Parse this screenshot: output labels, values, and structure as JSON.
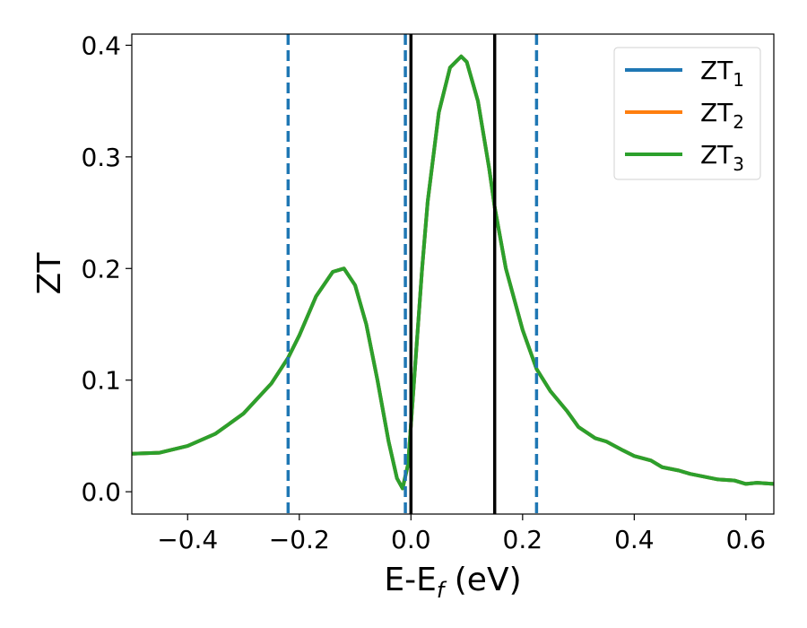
{
  "chart_data": {
    "type": "line",
    "xlabel_main": "E-E",
    "xlabel_sub": "f",
    "xlabel_unit": " (eV)",
    "ylabel": "ZT",
    "xlim": [
      -0.5,
      0.65
    ],
    "ylim": [
      -0.02,
      0.41
    ],
    "xticks": [
      -0.4,
      -0.2,
      0.0,
      0.2,
      0.4,
      0.6
    ],
    "xtick_labels": [
      "−0.4",
      "−0.2",
      "0.0",
      "0.2",
      "0.4",
      "0.6"
    ],
    "yticks": [
      0.0,
      0.1,
      0.2,
      0.3,
      0.4
    ],
    "ytick_labels": [
      "0.0",
      "0.1",
      "0.2",
      "0.3",
      "0.4"
    ],
    "grid": false,
    "legend_position": "top-right",
    "series": [
      {
        "name": "ZT1",
        "name_main": "ZT",
        "name_sub": "1",
        "color": "#1f77b4",
        "x": [
          -0.5,
          -0.45,
          -0.4,
          -0.35,
          -0.3,
          -0.25,
          -0.22,
          -0.2,
          -0.17,
          -0.14,
          -0.12,
          -0.1,
          -0.08,
          -0.06,
          -0.04,
          -0.025,
          -0.015,
          -0.005,
          0.0,
          0.01,
          0.02,
          0.03,
          0.05,
          0.07,
          0.09,
          0.1,
          0.12,
          0.14,
          0.15,
          0.17,
          0.2,
          0.225,
          0.25,
          0.28,
          0.3,
          0.33,
          0.35,
          0.38,
          0.4,
          0.43,
          0.45,
          0.48,
          0.5,
          0.53,
          0.55,
          0.58,
          0.6,
          0.62,
          0.65
        ],
        "y": [
          0.034,
          0.035,
          0.041,
          0.052,
          0.07,
          0.097,
          0.12,
          0.14,
          0.175,
          0.197,
          0.2,
          0.185,
          0.15,
          0.1,
          0.045,
          0.012,
          0.003,
          0.025,
          0.06,
          0.13,
          0.2,
          0.26,
          0.34,
          0.38,
          0.39,
          0.385,
          0.35,
          0.29,
          0.255,
          0.2,
          0.145,
          0.11,
          0.09,
          0.072,
          0.058,
          0.048,
          0.045,
          0.037,
          0.032,
          0.028,
          0.022,
          0.019,
          0.016,
          0.013,
          0.011,
          0.01,
          0.007,
          0.008,
          0.007
        ]
      },
      {
        "name": "ZT2",
        "name_main": "ZT",
        "name_sub": "2",
        "color": "#ff7f0e",
        "x": [
          -0.5,
          -0.45,
          -0.4,
          -0.35,
          -0.3,
          -0.25,
          -0.22,
          -0.2,
          -0.17,
          -0.14,
          -0.12,
          -0.1,
          -0.08,
          -0.06,
          -0.04,
          -0.025,
          -0.015,
          -0.005,
          0.0,
          0.01,
          0.02,
          0.03,
          0.05,
          0.07,
          0.09,
          0.1,
          0.12,
          0.14,
          0.15,
          0.17,
          0.2,
          0.225,
          0.25,
          0.28,
          0.3,
          0.33,
          0.35,
          0.38,
          0.4,
          0.43,
          0.45,
          0.48,
          0.5,
          0.53,
          0.55,
          0.58,
          0.6,
          0.62,
          0.65
        ],
        "y": [
          0.034,
          0.035,
          0.041,
          0.052,
          0.07,
          0.097,
          0.12,
          0.14,
          0.175,
          0.197,
          0.2,
          0.185,
          0.15,
          0.1,
          0.045,
          0.012,
          0.003,
          0.025,
          0.06,
          0.13,
          0.2,
          0.26,
          0.34,
          0.38,
          0.39,
          0.385,
          0.35,
          0.29,
          0.255,
          0.2,
          0.145,
          0.11,
          0.09,
          0.072,
          0.058,
          0.048,
          0.045,
          0.037,
          0.032,
          0.028,
          0.022,
          0.019,
          0.016,
          0.013,
          0.011,
          0.01,
          0.007,
          0.008,
          0.007
        ]
      },
      {
        "name": "ZT3",
        "name_main": "ZT",
        "name_sub": "3",
        "color": "#2ca02c",
        "x": [
          -0.5,
          -0.45,
          -0.4,
          -0.35,
          -0.3,
          -0.25,
          -0.22,
          -0.2,
          -0.17,
          -0.14,
          -0.12,
          -0.1,
          -0.08,
          -0.06,
          -0.04,
          -0.025,
          -0.015,
          -0.005,
          0.0,
          0.01,
          0.02,
          0.03,
          0.05,
          0.07,
          0.09,
          0.1,
          0.12,
          0.14,
          0.15,
          0.17,
          0.2,
          0.225,
          0.25,
          0.28,
          0.3,
          0.33,
          0.35,
          0.38,
          0.4,
          0.43,
          0.45,
          0.48,
          0.5,
          0.53,
          0.55,
          0.58,
          0.6,
          0.62,
          0.65
        ],
        "y": [
          0.034,
          0.035,
          0.041,
          0.052,
          0.07,
          0.097,
          0.12,
          0.14,
          0.175,
          0.197,
          0.2,
          0.185,
          0.15,
          0.1,
          0.045,
          0.012,
          0.003,
          0.025,
          0.06,
          0.13,
          0.2,
          0.26,
          0.34,
          0.38,
          0.39,
          0.385,
          0.35,
          0.29,
          0.255,
          0.2,
          0.145,
          0.11,
          0.09,
          0.072,
          0.058,
          0.048,
          0.045,
          0.037,
          0.032,
          0.028,
          0.022,
          0.019,
          0.016,
          0.013,
          0.011,
          0.01,
          0.007,
          0.008,
          0.007
        ]
      }
    ],
    "vlines": [
      {
        "x": -0.22,
        "style": "dashed",
        "color": "#1f77b4"
      },
      {
        "x": -0.01,
        "style": "dashed",
        "color": "#1f77b4"
      },
      {
        "x": 0.225,
        "style": "dashed",
        "color": "#1f77b4"
      },
      {
        "x": 0.0,
        "style": "solid",
        "color": "#000000"
      },
      {
        "x": 0.15,
        "style": "solid",
        "color": "#000000"
      }
    ]
  }
}
